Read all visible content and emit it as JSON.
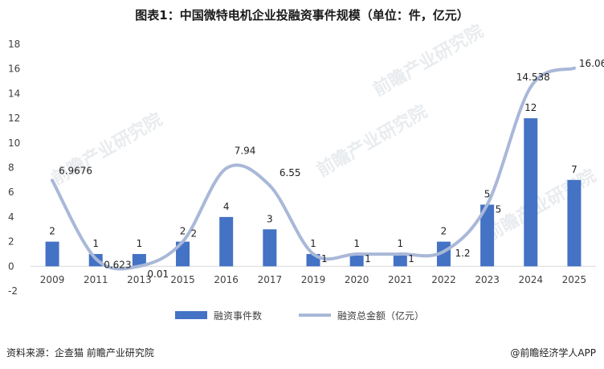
{
  "title": "图表1：中国微特电机企业投融资事件规模（单位：件，亿元）",
  "source": "资料来源：企查猫  前瞻产业研究院",
  "credit": "@前瞻经济学人APP",
  "watermark": "前瞻产业研究院",
  "colors": {
    "bar": "#4472c4",
    "line": "#a9b8d8",
    "grid": "#d9d9d9",
    "text": "#404040"
  },
  "chart_data": {
    "type": "bar",
    "categories": [
      "2009",
      "2011",
      "2013",
      "2015",
      "2016",
      "2017",
      "2019",
      "2020",
      "2021",
      "2022",
      "2023",
      "2024",
      "2025"
    ],
    "series": [
      {
        "name": "融资事件数",
        "type": "bar",
        "values": [
          2,
          1,
          1,
          2,
          4,
          3,
          1,
          1,
          1,
          2,
          5,
          12,
          7
        ],
        "labels": [
          "2",
          "1",
          "1",
          "2",
          "4",
          "3",
          "1",
          "1",
          "1",
          "2",
          "5",
          "12",
          "7"
        ]
      },
      {
        "name": "融资总金额（亿元）",
        "type": "line",
        "smooth": true,
        "values": [
          6.9676,
          0.623,
          0.01,
          2,
          7.94,
          6.55,
          1,
          1,
          1,
          1.2,
          5,
          14.538,
          16.06
        ],
        "labels": [
          "6.9676",
          "0.623",
          "0.01",
          "2",
          "7.94",
          "6.55",
          "1",
          "1",
          "1",
          "1.2",
          "5",
          "14.538",
          "16.06"
        ]
      }
    ],
    "yticks": [
      "-2",
      "0",
      "2",
      "4",
      "6",
      "8",
      "10",
      "12",
      "14",
      "16",
      "18"
    ],
    "ylim": [
      -2,
      18
    ],
    "grid": false,
    "legend": "bottom"
  }
}
